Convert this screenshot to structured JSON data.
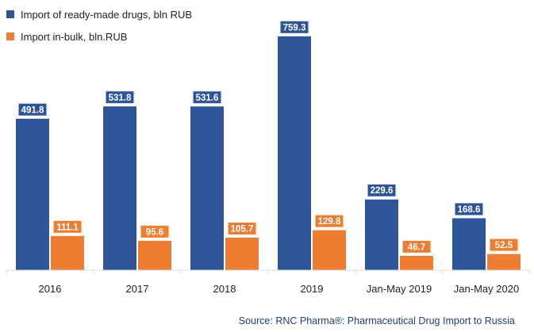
{
  "chart_data": {
    "type": "bar",
    "categories": [
      "2016",
      "2017",
      "2018",
      "2019",
      "Jan-May 2019",
      "Jan-May 2020"
    ],
    "series": [
      {
        "name": "Import of ready-made drugs, bln RUB",
        "color": "#2e5597",
        "values": [
          491.8,
          531.8,
          531.6,
          759.3,
          229.6,
          168.6
        ],
        "labels": [
          "491.8",
          "531.8",
          "531.6",
          "759.3",
          "229.6",
          "168.6"
        ]
      },
      {
        "name": "Import in-bulk, bln.RUB",
        "color": "#ed7d31",
        "values": [
          111.1,
          95.6,
          105.7,
          129.8,
          46.7,
          52.5
        ],
        "labels": [
          "111.1",
          "95.6",
          "105.7",
          "129.8",
          "46.7",
          "52.5"
        ]
      }
    ],
    "ylim": [
      0,
      800
    ],
    "grid": false,
    "legend_position": "top-left"
  },
  "source": "Source: RNC Pharma®: Pharmaceutical Drug Import to Russia"
}
